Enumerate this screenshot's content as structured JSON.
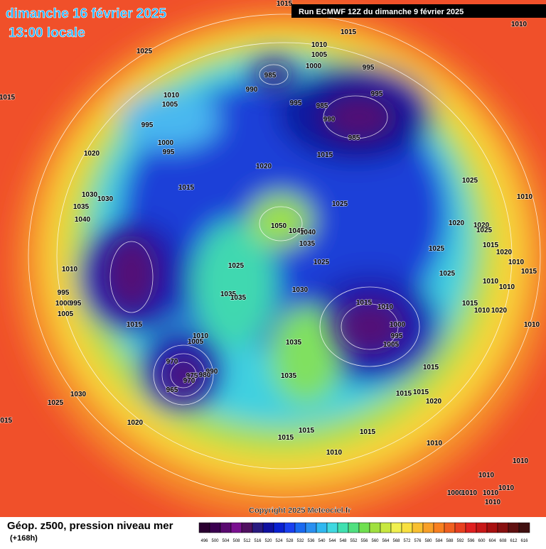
{
  "header": {
    "date": "dimanche 16 février 2025",
    "time": "13:00 locale",
    "run": "Run ECMWF 12Z du dimanche 9 février 2025"
  },
  "footer": {
    "title": "Géop. z500, pression niveau mer",
    "lead": "(+168h)",
    "copyright": "Copyright 2025 Meteociel.fr"
  },
  "legend": {
    "labels": [
      "496",
      "500",
      "504",
      "508",
      "512",
      "516",
      "520",
      "524",
      "528",
      "532",
      "536",
      "540",
      "544",
      "548",
      "552",
      "556",
      "560",
      "564",
      "568",
      "572",
      "576",
      "580",
      "584",
      "588",
      "592",
      "596",
      "600",
      "604",
      "608",
      "612",
      "616"
    ]
  },
  "isobar_labels": [
    "1015",
    "1015",
    "1010",
    "1025",
    "1010",
    "1005",
    "1000",
    "995",
    "985",
    "995",
    "1015",
    "1010",
    "1005",
    "990",
    "995",
    "985",
    "990",
    "995",
    "985",
    "1000",
    "995",
    "1020",
    "1015",
    "1020",
    "1015",
    "1025",
    "1030",
    "1030",
    "1035",
    "1025",
    "1010",
    "1040",
    "1050",
    "1045",
    "1040",
    "1020",
    "1020",
    "1025",
    "1035",
    "1015",
    "1025",
    "1020",
    "1025",
    "1010",
    "1025",
    "1010",
    "1015",
    "1025",
    "1030",
    "1010",
    "995",
    "1010",
    "1035",
    "1035",
    "1000",
    "995",
    "1015",
    "1010",
    "1015",
    "1010",
    "1020",
    "1005",
    "1000",
    "1015",
    "1010",
    "995",
    "1010",
    "1005",
    "1005",
    "1035",
    "970",
    "990",
    "975",
    "980",
    "970",
    "965",
    "1035",
    "1015",
    "1030",
    "1015",
    "1015",
    "1020",
    "1025",
    "1015",
    "1020",
    "1015",
    "1015",
    "1015",
    "1010",
    "1010",
    "1010",
    "1010",
    "1010",
    "1000",
    "1010",
    "1010",
    "1010"
  ]
}
